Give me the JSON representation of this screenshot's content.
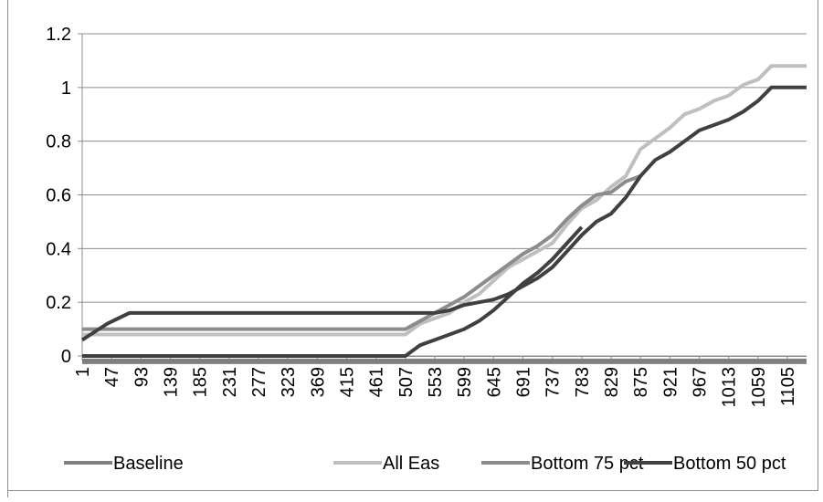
{
  "chart_data": {
    "type": "line",
    "title": "",
    "xlabel": "",
    "ylabel": "",
    "ylim": [
      0,
      1.2
    ],
    "xlim": [
      1,
      1135
    ],
    "y_ticks": [
      "0",
      "0.2",
      "0.4",
      "0.6",
      "0.8",
      "1",
      "1.2"
    ],
    "x_ticks": [
      "1",
      "47",
      "93",
      "139",
      "185",
      "231",
      "277",
      "323",
      "369",
      "415",
      "461",
      "507",
      "553",
      "599",
      "645",
      "691",
      "737",
      "783",
      "829",
      "875",
      "921",
      "967",
      "1013",
      "1059",
      "1105"
    ],
    "grid": "horizontal",
    "legend_position": "bottom",
    "series": [
      {
        "name": "Baseline",
        "color": "#7f7f7f",
        "points": [
          [
            1,
            -0.02
          ],
          [
            1135,
            -0.02
          ]
        ]
      },
      {
        "name": "All Eas",
        "color": "#bfbfbf",
        "points": [
          [
            1,
            0.08
          ],
          [
            507,
            0.08
          ],
          [
            530,
            0.12
          ],
          [
            553,
            0.14
          ],
          [
            576,
            0.16
          ],
          [
            599,
            0.2
          ],
          [
            622,
            0.23
          ],
          [
            645,
            0.28
          ],
          [
            668,
            0.33
          ],
          [
            691,
            0.36
          ],
          [
            714,
            0.39
          ],
          [
            737,
            0.42
          ],
          [
            760,
            0.49
          ],
          [
            783,
            0.55
          ],
          [
            806,
            0.58
          ],
          [
            829,
            0.63
          ],
          [
            852,
            0.67
          ],
          [
            875,
            0.77
          ],
          [
            898,
            0.81
          ],
          [
            921,
            0.85
          ],
          [
            944,
            0.9
          ],
          [
            967,
            0.92
          ],
          [
            990,
            0.95
          ],
          [
            1013,
            0.97
          ],
          [
            1036,
            1.01
          ],
          [
            1059,
            1.03
          ],
          [
            1080,
            1.08
          ],
          [
            1135,
            1.08
          ]
        ]
      },
      {
        "name": "Bottom 75 pct",
        "color": "#8c8c8c",
        "points": [
          [
            1,
            0.1
          ],
          [
            507,
            0.1
          ],
          [
            530,
            0.13
          ],
          [
            553,
            0.16
          ],
          [
            576,
            0.19
          ],
          [
            599,
            0.22
          ],
          [
            622,
            0.26
          ],
          [
            645,
            0.3
          ],
          [
            668,
            0.34
          ],
          [
            691,
            0.38
          ],
          [
            714,
            0.41
          ],
          [
            737,
            0.45
          ],
          [
            760,
            0.51
          ],
          [
            783,
            0.56
          ],
          [
            806,
            0.6
          ],
          [
            829,
            0.61
          ],
          [
            852,
            0.65
          ],
          [
            875,
            0.67
          ]
        ]
      },
      {
        "name": "Bottom 50 pct",
        "color": "#404040",
        "points": [
          [
            1,
            0.06
          ],
          [
            40,
            0.12
          ],
          [
            75,
            0.16
          ],
          [
            553,
            0.16
          ],
          [
            576,
            0.17
          ],
          [
            599,
            0.19
          ],
          [
            622,
            0.2
          ],
          [
            645,
            0.21
          ],
          [
            668,
            0.23
          ],
          [
            691,
            0.26
          ],
          [
            714,
            0.29
          ],
          [
            737,
            0.33
          ],
          [
            760,
            0.39
          ],
          [
            783,
            0.45
          ],
          [
            806,
            0.5
          ],
          [
            829,
            0.53
          ],
          [
            852,
            0.59
          ],
          [
            875,
            0.67
          ],
          [
            898,
            0.73
          ],
          [
            921,
            0.76
          ],
          [
            944,
            0.8
          ],
          [
            967,
            0.84
          ],
          [
            990,
            0.86
          ],
          [
            1013,
            0.88
          ],
          [
            1036,
            0.91
          ],
          [
            1059,
            0.95
          ],
          [
            1080,
            1.0
          ],
          [
            1135,
            1.0
          ]
        ]
      },
      {
        "name": "",
        "color": "#404040",
        "points": [
          [
            1,
            0.0
          ],
          [
            507,
            0.0
          ],
          [
            530,
            0.04
          ],
          [
            553,
            0.06
          ],
          [
            576,
            0.08
          ],
          [
            599,
            0.1
          ],
          [
            622,
            0.13
          ],
          [
            645,
            0.17
          ],
          [
            668,
            0.22
          ],
          [
            691,
            0.27
          ],
          [
            714,
            0.31
          ],
          [
            737,
            0.36
          ],
          [
            760,
            0.42
          ],
          [
            783,
            0.48
          ]
        ]
      }
    ]
  }
}
